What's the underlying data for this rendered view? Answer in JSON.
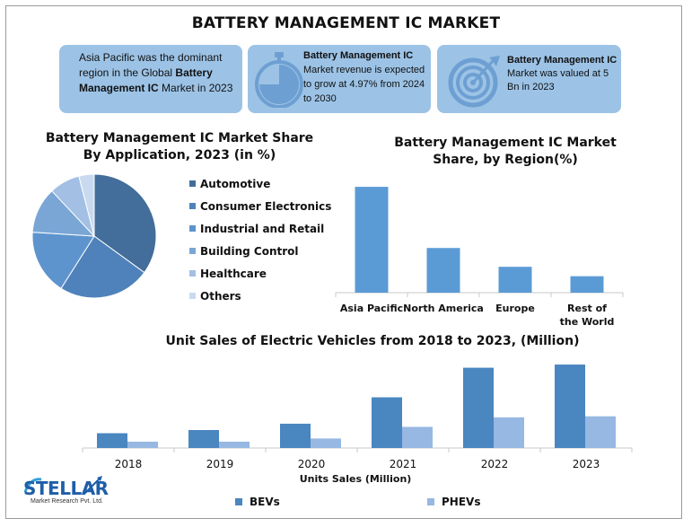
{
  "title": "BATTERY MANAGEMENT IC MARKET",
  "cards": {
    "card1": {
      "pre": "Asia Pacific was the dominant region in the Global ",
      "bold": "Battery Management IC",
      "post": " Market in 2023"
    },
    "card2": {
      "bold": "Battery Management IC",
      "text": "Market revenue is expected to grow at 4.97% from 2024 to 2030"
    },
    "card3": {
      "bold": "Battery Management IC",
      "text": "Market was valued at 5 Bn in 2023"
    }
  },
  "colors": {
    "dark": "#4a7bb1",
    "mid": "#5e95d0",
    "light": "#96b8e2",
    "card": "#9cc3e6"
  },
  "chart_data": [
    {
      "type": "pie",
      "title": "Battery Management  IC Market Share By Application, 2023 (in %)",
      "categories": [
        "Automotive",
        "Consumer Electronics",
        "Industrial and Retail",
        "Building Control",
        "Healthcare",
        "Others"
      ],
      "values": [
        35,
        24,
        17,
        12,
        8,
        4
      ],
      "colors": [
        "#436d9a",
        "#4f82ba",
        "#5e94cd",
        "#7aa6d6",
        "#a3bfe3",
        "#c9daf0"
      ],
      "legend": "right"
    },
    {
      "type": "bar",
      "title": "Battery Management IC Market Share, by Region(%)",
      "categories": [
        "Asia Pacific",
        "North America",
        "Europe",
        "Rest of the World"
      ],
      "values": [
        45,
        19,
        11,
        7
      ],
      "ylim": [
        0,
        50
      ],
      "color": "#5b9bd5"
    },
    {
      "type": "bar",
      "title": "Unit Sales of Electric Vehicles from 2018 to 2023, (Million)",
      "xlabel": "Units Sales (Million)",
      "categories": [
        "2018",
        "2019",
        "2020",
        "2021",
        "2022",
        "2023"
      ],
      "series": [
        {
          "name": "BEVs",
          "values": [
            1.4,
            1.7,
            2.3,
            4.8,
            7.6,
            7.9
          ],
          "color": "#4a86c0"
        },
        {
          "name": "PHEVs",
          "values": [
            0.6,
            0.6,
            0.9,
            2.0,
            2.9,
            3.0
          ],
          "color": "#96b8e2"
        }
      ],
      "ylim": [
        0,
        8.5
      ],
      "legend": "bottom"
    }
  ],
  "logo": {
    "name": "STELLAR",
    "tagline": "Market Research Pvt. Ltd."
  }
}
